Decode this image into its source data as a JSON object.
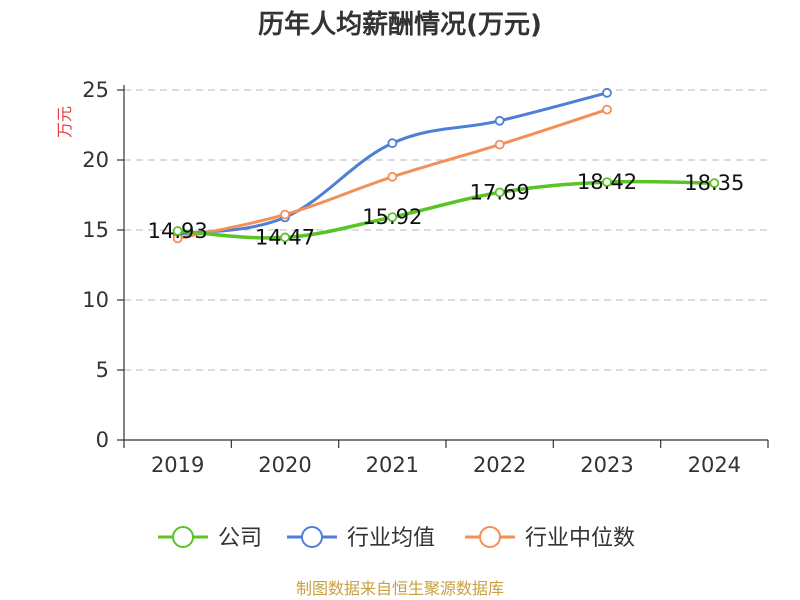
{
  "chart_data": {
    "type": "line",
    "title": "历年人均薪酬情况(万元)",
    "ylabel": "万元",
    "categories": [
      "2019",
      "2020",
      "2021",
      "2022",
      "2023",
      "2024"
    ],
    "ylim": [
      0,
      25
    ],
    "yticks": [
      0,
      5,
      10,
      15,
      20,
      25
    ],
    "grid": true,
    "legend_position": "bottom",
    "series": [
      {
        "name": "公司",
        "color": "#5ac427",
        "values": [
          14.93,
          14.47,
          15.92,
          17.69,
          18.42,
          18.35
        ],
        "labels": [
          "14.93",
          "14.47",
          "15.92",
          "17.69",
          "18.42",
          "18.35"
        ]
      },
      {
        "name": "行业均值",
        "color": "#4e7fd6",
        "values": [
          14.7,
          15.9,
          21.2,
          22.8,
          24.8,
          null
        ]
      },
      {
        "name": "行业中位数",
        "color": "#f48f57",
        "values": [
          14.4,
          16.1,
          18.8,
          21.1,
          23.6,
          null
        ]
      }
    ]
  },
  "source": "制图数据来自恒生聚源数据库"
}
